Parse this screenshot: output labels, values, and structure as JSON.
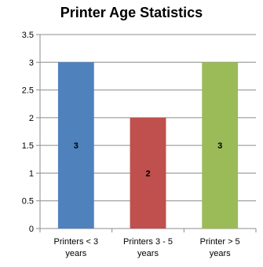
{
  "chart_data": {
    "type": "bar",
    "title": "Printer Age Statistics",
    "categories": [
      "Printers < 3 years",
      "Printers 3 - 5 years",
      "Printer > 5 years"
    ],
    "category_lines": [
      [
        "Printers < 3",
        "years"
      ],
      [
        "Printers 3 - 5",
        "years"
      ],
      [
        "Printer > 5",
        "years"
      ]
    ],
    "values": [
      3,
      2,
      3
    ],
    "data_labels": [
      "3",
      "2",
      "3"
    ],
    "bar_colors": [
      "#4f81bd",
      "#c0504d",
      "#9bbb59"
    ],
    "ylim": [
      0,
      3.5
    ],
    "yticks": [
      "0",
      "0.5",
      "1",
      "1.5",
      "2",
      "2.5",
      "3",
      "3.5"
    ],
    "grid": true,
    "legend": "none"
  }
}
